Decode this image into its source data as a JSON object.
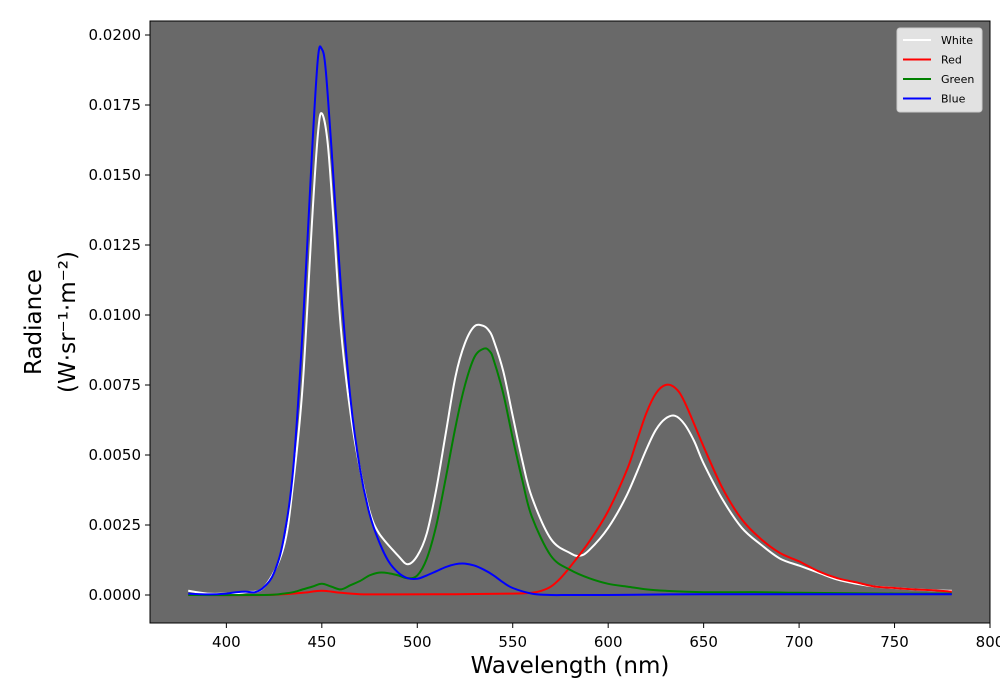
{
  "chart_data": {
    "type": "line",
    "title": "",
    "xlabel": "Wavelength (nm)",
    "ylabel_line1": "Radiance",
    "ylabel_line2": "(W·sr⁻¹·m⁻²)",
    "xlim": [
      360,
      800
    ],
    "ylim": [
      -0.001,
      0.0205
    ],
    "xticks": [
      400,
      450,
      500,
      550,
      600,
      650,
      700,
      750,
      800
    ],
    "yticks": [
      0.0,
      0.0025,
      0.005,
      0.0075,
      0.01,
      0.0125,
      0.015,
      0.0175,
      0.02
    ],
    "ytick_labels": [
      "0.0000",
      "0.0025",
      "0.0050",
      "0.0075",
      "0.0100",
      "0.0125",
      "0.0150",
      "0.0175",
      "0.0200"
    ],
    "grid": false,
    "legend": "top-right",
    "plot_background": "#696969",
    "series": [
      {
        "name": "White",
        "color": "#ffffff",
        "x": [
          380,
          390,
          400,
          410,
          420,
          430,
          435,
          440,
          445,
          448,
          450,
          453,
          456,
          460,
          465,
          470,
          475,
          480,
          490,
          495,
          500,
          505,
          510,
          515,
          520,
          525,
          530,
          535,
          538,
          540,
          545,
          550,
          555,
          560,
          570,
          580,
          585,
          590,
          600,
          610,
          620,
          625,
          630,
          635,
          640,
          645,
          650,
          660,
          670,
          680,
          690,
          700,
          710,
          720,
          730,
          740,
          750,
          760,
          770,
          780
        ],
        "y": [
          0.00015,
          5e-05,
          5e-05,
          0.0001,
          0.0003,
          0.0017,
          0.004,
          0.0075,
          0.0135,
          0.0165,
          0.0172,
          0.0162,
          0.0135,
          0.0095,
          0.0065,
          0.0045,
          0.003,
          0.0022,
          0.0014,
          0.0011,
          0.0014,
          0.0022,
          0.0038,
          0.0058,
          0.0078,
          0.009,
          0.0096,
          0.0096,
          0.0094,
          0.0091,
          0.008,
          0.0064,
          0.0048,
          0.0035,
          0.002,
          0.0015,
          0.0014,
          0.0016,
          0.0024,
          0.0036,
          0.0052,
          0.0059,
          0.0063,
          0.0064,
          0.0061,
          0.0055,
          0.0047,
          0.0034,
          0.0024,
          0.0018,
          0.0013,
          0.00105,
          0.0008,
          0.00055,
          0.0004,
          0.0003,
          0.00025,
          0.0002,
          0.00017,
          0.00015
        ]
      },
      {
        "name": "Red",
        "color": "#ff0000",
        "x": [
          380,
          420,
          440,
          445,
          450,
          455,
          460,
          470,
          490,
          520,
          550,
          560,
          565,
          570,
          575,
          580,
          590,
          600,
          610,
          615,
          620,
          625,
          630,
          635,
          640,
          650,
          660,
          670,
          680,
          690,
          700,
          710,
          720,
          730,
          740,
          750,
          760,
          770,
          780
        ],
        "y": [
          0.0,
          0.0,
          8e-05,
          0.00012,
          0.00015,
          0.00012,
          8e-05,
          3e-05,
          2e-05,
          3e-05,
          5e-05,
          8e-05,
          0.00015,
          0.0003,
          0.0006,
          0.001,
          0.0019,
          0.003,
          0.0045,
          0.0055,
          0.0065,
          0.0072,
          0.0075,
          0.0074,
          0.0069,
          0.0053,
          0.0038,
          0.0027,
          0.002,
          0.0015,
          0.0012,
          0.00085,
          0.0006,
          0.00045,
          0.0003,
          0.00025,
          0.0002,
          0.00017,
          0.00012
        ]
      },
      {
        "name": "Green",
        "color": "#008000",
        "x": [
          380,
          420,
          430,
          435,
          440,
          445,
          450,
          455,
          460,
          465,
          470,
          475,
          480,
          485,
          490,
          495,
          500,
          505,
          510,
          515,
          520,
          525,
          530,
          535,
          538,
          540,
          545,
          550,
          555,
          560,
          570,
          580,
          590,
          600,
          610,
          620,
          630,
          650,
          680,
          700,
          750,
          780
        ],
        "y": [
          0.0,
          0.0,
          5e-05,
          0.0001,
          0.0002,
          0.0003,
          0.0004,
          0.0003,
          0.0002,
          0.00035,
          0.0005,
          0.0007,
          0.0008,
          0.00078,
          0.0007,
          0.0006,
          0.0007,
          0.0013,
          0.0025,
          0.0042,
          0.006,
          0.0075,
          0.0085,
          0.0088,
          0.0087,
          0.0084,
          0.0072,
          0.0056,
          0.0041,
          0.0028,
          0.0014,
          0.0009,
          0.0006,
          0.0004,
          0.0003,
          0.0002,
          0.00015,
          0.0001,
          0.0001,
          8e-05,
          5e-05,
          5e-05
        ]
      },
      {
        "name": "Blue",
        "color": "#0000ff",
        "x": [
          380,
          390,
          400,
          405,
          410,
          415,
          420,
          425,
          430,
          435,
          440,
          445,
          448,
          450,
          452,
          455,
          460,
          465,
          470,
          475,
          480,
          485,
          490,
          495,
          500,
          505,
          510,
          515,
          520,
          525,
          530,
          535,
          540,
          545,
          550,
          560,
          570,
          580,
          600,
          650,
          700,
          750,
          780
        ],
        "y": [
          5e-05,
          2e-05,
          5e-05,
          0.0001,
          0.00012,
          0.0001,
          0.0003,
          0.0008,
          0.002,
          0.0045,
          0.0095,
          0.016,
          0.0192,
          0.0195,
          0.0188,
          0.016,
          0.011,
          0.007,
          0.0045,
          0.0029,
          0.0019,
          0.0012,
          0.0008,
          0.0006,
          0.00058,
          0.0007,
          0.00085,
          0.001,
          0.0011,
          0.00112,
          0.00105,
          0.0009,
          0.0007,
          0.00045,
          0.00025,
          5e-05,
          0.0,
          0.0,
          0.0,
          3e-05,
          3e-05,
          3e-05,
          3e-05
        ]
      }
    ]
  }
}
